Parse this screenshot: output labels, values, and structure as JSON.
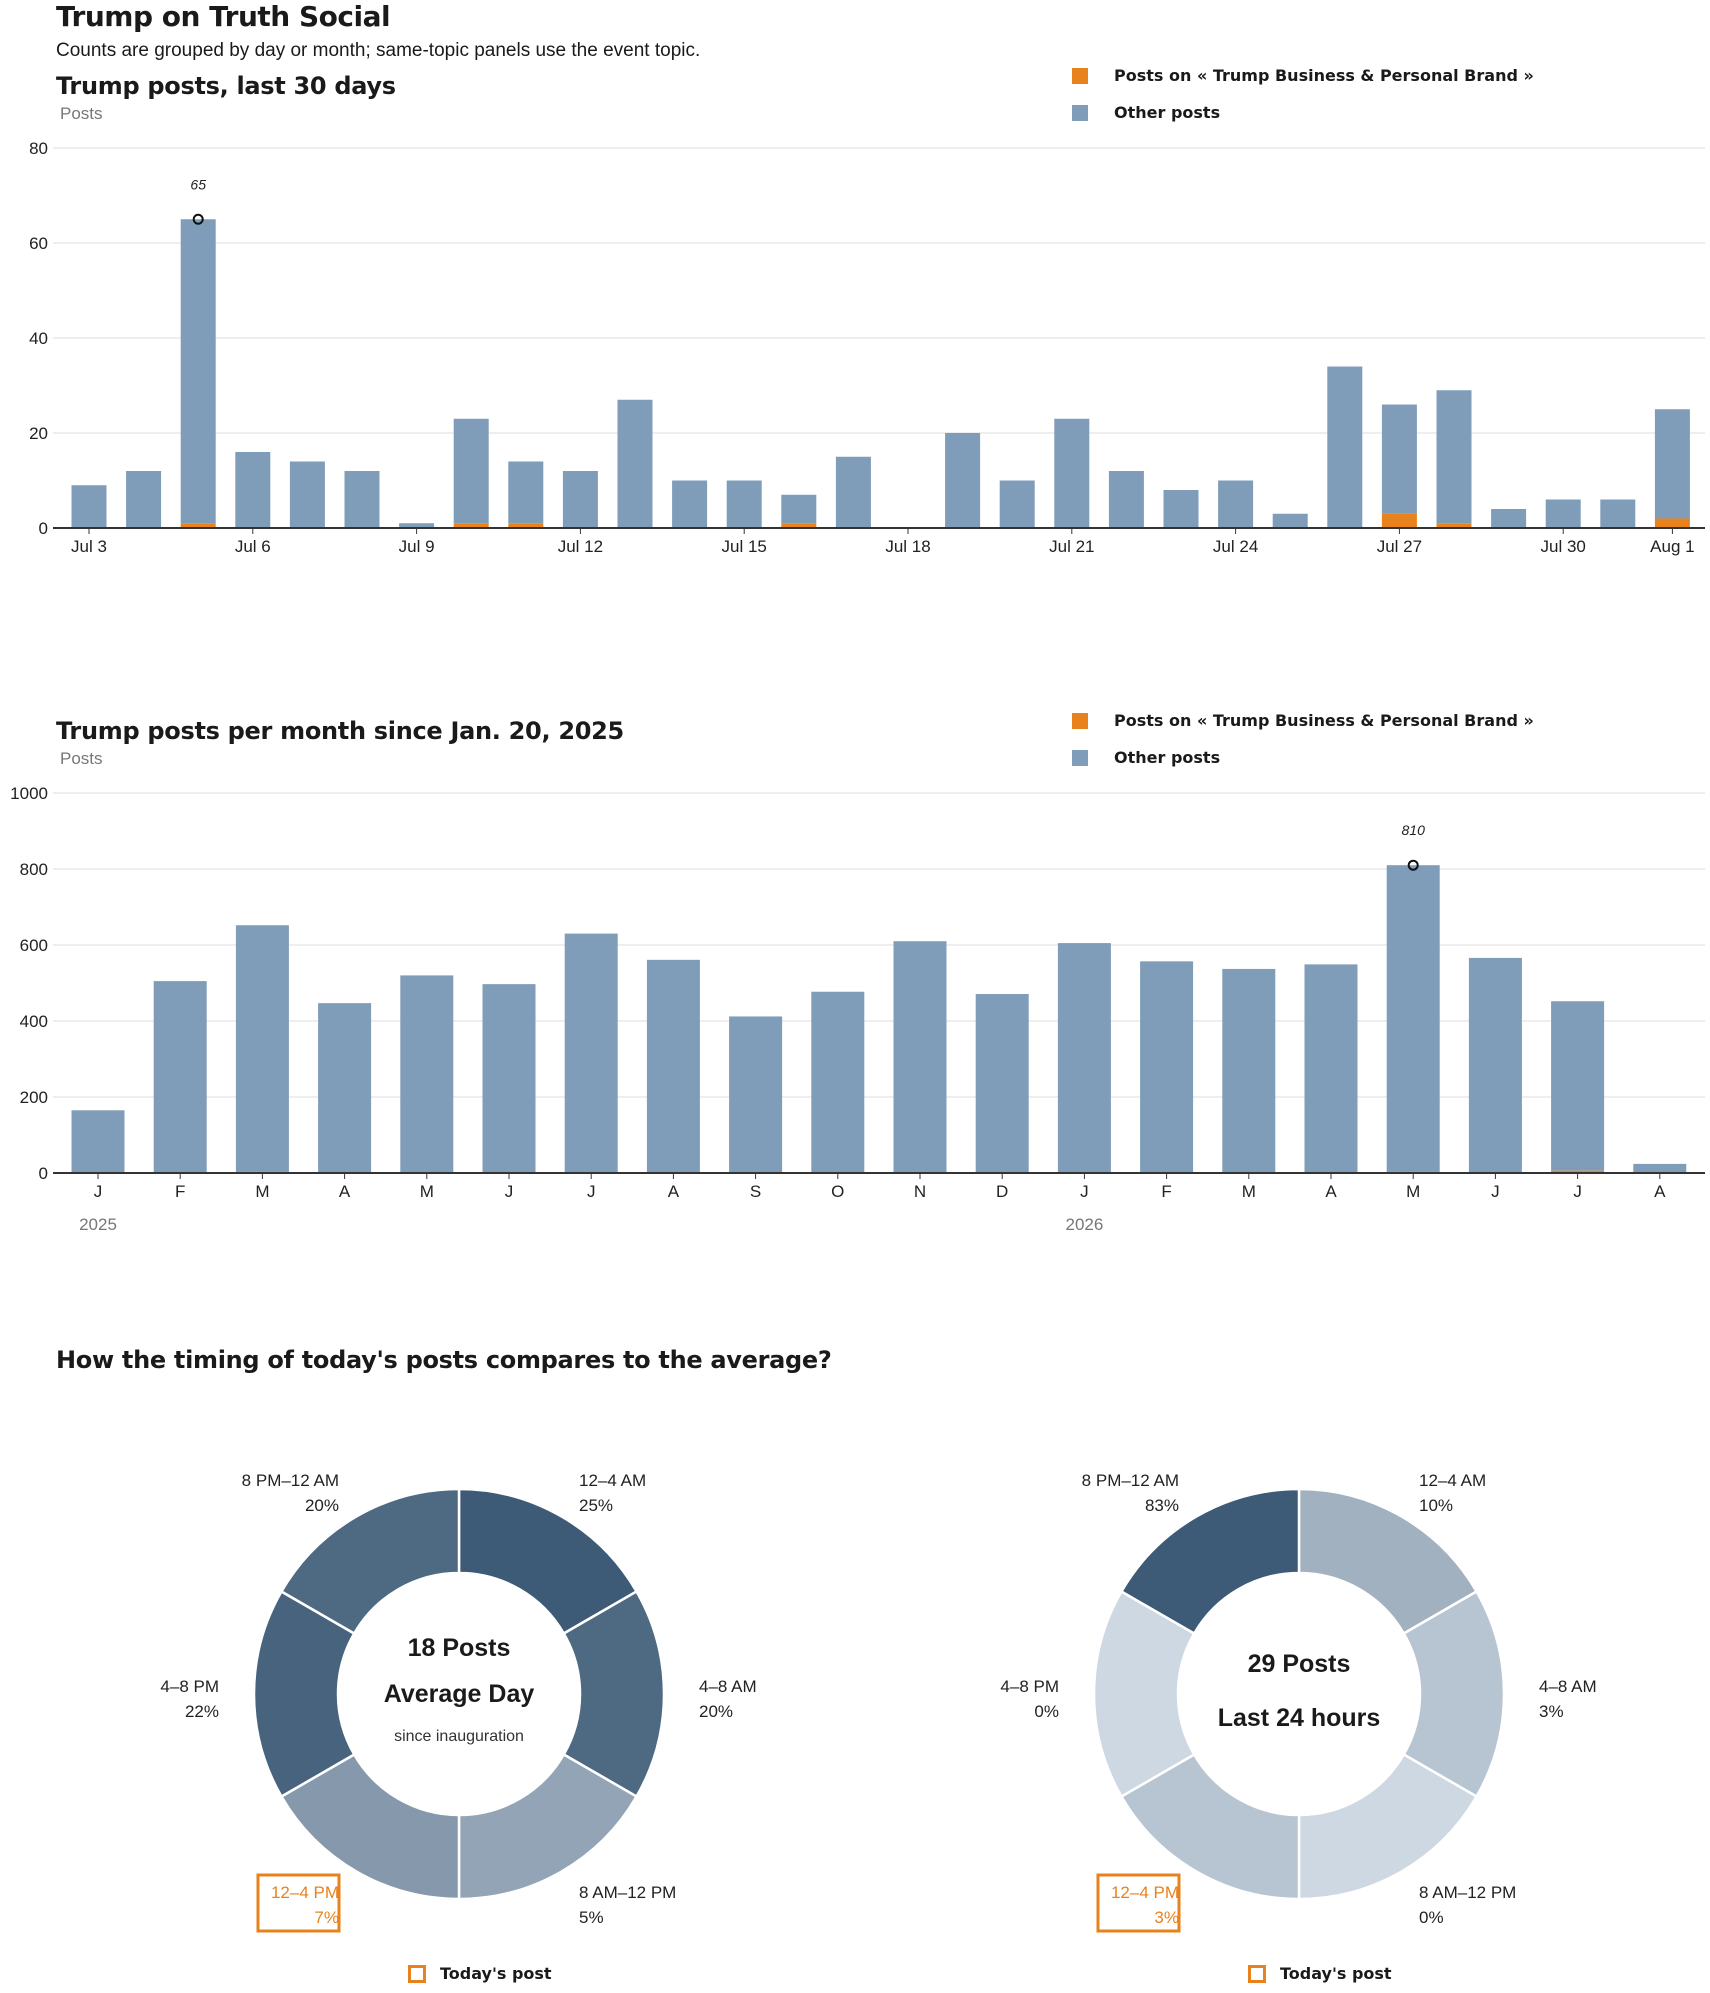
{
  "page": {
    "title": "Trump on Truth Social",
    "subtitle": "Counts are grouped by day or month; same-topic panels use the event topic."
  },
  "colors": {
    "topic": "#e8821d",
    "other": "#7f9db9",
    "grid": "#dddddd",
    "axis": "#333333",
    "highlight": "#e8821d"
  },
  "legend": {
    "topic_label": "Posts on « Trump Business & Personal Brand »",
    "other_label": "Other posts"
  },
  "chart_data": [
    {
      "type": "bar",
      "title": "Trump posts, last 30 days",
      "ylabel": "Posts",
      "ylim": [
        0,
        80
      ],
      "yticks": [
        0,
        20,
        40,
        60,
        80
      ],
      "stacked": true,
      "categories": [
        "Jul 3",
        "Jul 4",
        "Jul 5",
        "Jul 6",
        "Jul 7",
        "Jul 8",
        "Jul 9",
        "Jul 10",
        "Jul 11",
        "Jul 12",
        "Jul 13",
        "Jul 14",
        "Jul 15",
        "Jul 16",
        "Jul 17",
        "Jul 18",
        "Jul 19",
        "Jul 20",
        "Jul 21",
        "Jul 22",
        "Jul 23",
        "Jul 24",
        "Jul 25",
        "Jul 26",
        "Jul 27",
        "Jul 28",
        "Jul 29",
        "Jul 30",
        "Jul 31",
        "Aug 1"
      ],
      "tick_labels": [
        "Jul 3",
        "",
        "",
        "Jul 6",
        "",
        "",
        "Jul 9",
        "",
        "",
        "Jul 12",
        "",
        "",
        "Jul 15",
        "",
        "",
        "Jul 18",
        "",
        "",
        "Jul 21",
        "",
        "",
        "Jul 24",
        "",
        "",
        "Jul 27",
        "",
        "",
        "Jul 30",
        "",
        "Aug 1"
      ],
      "series": [
        {
          "name": "Posts on « Trump Business & Personal Brand »",
          "values": [
            0,
            0,
            1,
            0,
            0,
            0,
            0,
            1,
            1,
            0,
            0,
            0,
            0,
            1,
            0,
            0,
            0,
            0,
            0,
            0,
            0,
            0,
            0,
            0,
            3,
            1,
            0,
            0,
            0,
            2
          ]
        },
        {
          "name": "Other posts",
          "values": [
            9,
            12,
            64,
            16,
            14,
            12,
            1,
            22,
            13,
            12,
            27,
            10,
            10,
            6,
            15,
            0,
            20,
            10,
            23,
            12,
            8,
            10,
            3,
            34,
            23,
            28,
            4,
            6,
            6,
            23
          ]
        }
      ],
      "annotation": {
        "label": "65",
        "category": "Jul 5",
        "value": 65
      },
      "grid": true,
      "legend_position": "top-right"
    },
    {
      "type": "bar",
      "title": "Trump posts per month since Jan. 20, 2025",
      "ylabel": "Posts",
      "ylim": [
        0,
        1000
      ],
      "yticks": [
        0,
        200,
        400,
        600,
        800,
        1000
      ],
      "stacked": true,
      "categories": [
        "J",
        "F",
        "M",
        "A",
        "M",
        "J",
        "J",
        "A",
        "S",
        "O",
        "N",
        "D",
        "J",
        "F",
        "M",
        "A",
        "M",
        "J",
        "J",
        "A"
      ],
      "year_labels": [
        {
          "label": "2025",
          "index": 0
        },
        {
          "label": "2026",
          "index": 12
        }
      ],
      "series": [
        {
          "name": "Posts on « Trump Business & Personal Brand »",
          "values": [
            4,
            2,
            5,
            2,
            2,
            4,
            2,
            2,
            4,
            2,
            2,
            4,
            2,
            2,
            2,
            2,
            5,
            2,
            6,
            0
          ]
        },
        {
          "name": "Other posts",
          "values": [
            161,
            503,
            647,
            445,
            518,
            493,
            628,
            559,
            408,
            475,
            608,
            467,
            603,
            555,
            535,
            547,
            805,
            564,
            446,
            24
          ]
        }
      ],
      "annotation": {
        "label": "810",
        "index": 16,
        "value": 810
      },
      "grid": true,
      "legend_position": "top-right"
    },
    {
      "type": "pie",
      "title": "How the timing of today's posts compares to the average?",
      "center_title": "18 Posts",
      "center_subtitle": "Average Day",
      "center_note": "since inauguration",
      "slices": [
        {
          "label": "12–4 AM",
          "value": 25,
          "pct": "25%"
        },
        {
          "label": "4–8 AM",
          "value": 20,
          "pct": "20%"
        },
        {
          "label": "8 AM–12 PM",
          "value": 5,
          "pct": "5%"
        },
        {
          "label": "12–4 PM",
          "value": 7,
          "pct": "7%",
          "highlight": true
        },
        {
          "label": "4–8 PM",
          "value": 22,
          "pct": "22%"
        },
        {
          "label": "8 PM–12 AM",
          "value": 20,
          "pct": "20%"
        }
      ],
      "legend": "Today's post"
    },
    {
      "type": "pie",
      "center_title": "29 Posts",
      "center_subtitle": "Last 24 hours",
      "slices": [
        {
          "label": "12–4 AM",
          "value": 10,
          "pct": "10%"
        },
        {
          "label": "4–8 AM",
          "value": 3,
          "pct": "3%"
        },
        {
          "label": "8 AM–12 PM",
          "value": 0,
          "pct": "0%"
        },
        {
          "label": "12–4 PM",
          "value": 3,
          "pct": "3%",
          "highlight": true
        },
        {
          "label": "4–8 PM",
          "value": 0,
          "pct": "0%"
        },
        {
          "label": "8 PM–12 AM",
          "value": 83,
          "pct": "83%"
        }
      ],
      "legend": "Today's post"
    }
  ]
}
